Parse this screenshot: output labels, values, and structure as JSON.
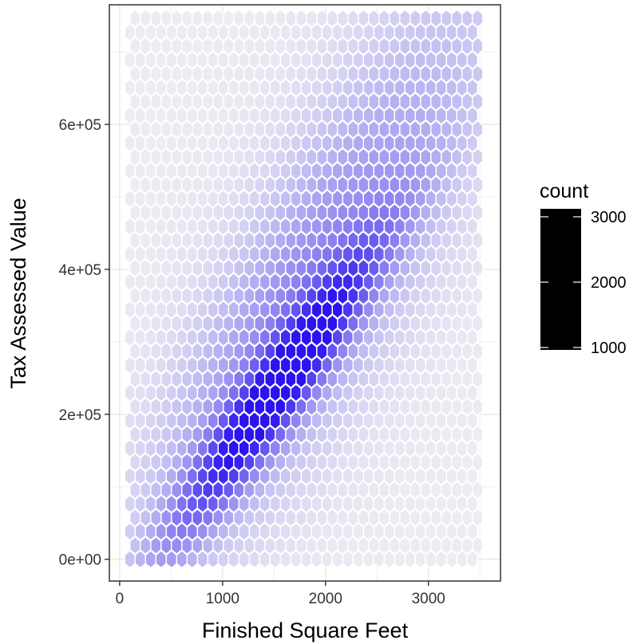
{
  "chart_data": {
    "type": "hexbin",
    "xlabel": "Finished Square Feet",
    "ylabel": "Tax Assessed Value",
    "xlim": [
      -100,
      3700
    ],
    "ylim": [
      -30000,
      765000
    ],
    "x_ticks": [
      0,
      1000,
      2000,
      3000
    ],
    "x_tick_labels": [
      "0",
      "1000",
      "2000",
      "3000"
    ],
    "y_ticks": [
      0,
      200000,
      400000,
      600000
    ],
    "y_tick_labels": [
      "0e+00",
      "2e+05",
      "4e+05",
      "6e+05"
    ],
    "hex_x_range": [
      100,
      3500
    ],
    "hex_y_range": [
      0,
      750000
    ],
    "density_model": {
      "peak_count": 3000,
      "base_count": 20,
      "components": [
        {
          "x": 1530,
          "y": 235000,
          "weight": 1.0,
          "spread_along": 650,
          "spread_across": 45000
        },
        {
          "x": 1700,
          "y": 330000,
          "weight": 0.32,
          "spread_along": 900,
          "spread_across": 120000
        },
        {
          "x": 2400,
          "y": 500000,
          "weight": 0.12,
          "spread_along": 1100,
          "spread_across": 170000
        }
      ]
    },
    "legend": {
      "title": "count",
      "placement": "right",
      "labels": [
        "3000",
        "2000",
        "1000"
      ],
      "values": [
        3000,
        2000,
        1000
      ]
    },
    "grid": true,
    "colors": {
      "low": "#ececf2",
      "high": "#2a14f0",
      "hex_edge": "#ffffff",
      "grid": "#ebebeb",
      "panel_border": "#333333",
      "legend_bar": "#000000"
    }
  }
}
